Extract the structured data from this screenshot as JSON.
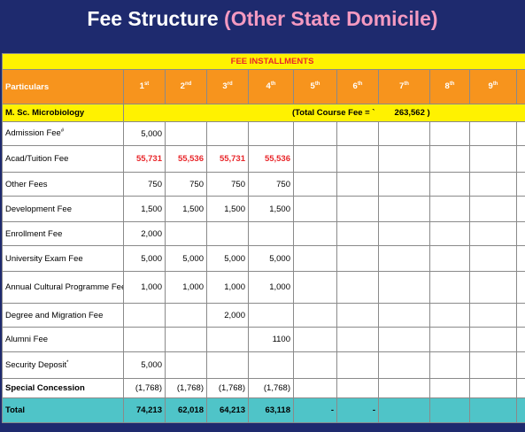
{
  "header": {
    "title": "Fee Structure",
    "subtitle": "(Other State Domicile)"
  },
  "table": {
    "banner": "FEE INSTALLMENTS",
    "columns": [
      {
        "text": "Particulars"
      },
      {
        "text": "1",
        "sup": "st"
      },
      {
        "text": "2",
        "sup": "nd"
      },
      {
        "text": "3",
        "sup": "rd"
      },
      {
        "text": "4",
        "sup": "th"
      },
      {
        "text": "5",
        "sup": "th"
      },
      {
        "text": "6",
        "sup": "th"
      },
      {
        "text": "7",
        "sup": "th"
      },
      {
        "text": "8",
        "sup": "th"
      },
      {
        "text": "9",
        "sup": "th"
      }
    ],
    "program": {
      "name": "M. Sc. Microbiology",
      "total_label": "(Total Course Fee = `",
      "total": "263,562 )"
    },
    "rows": [
      {
        "label": "Admission Fee",
        "sup": "#",
        "cells": [
          "5,000"
        ]
      },
      {
        "label": "Acad/Tuition  Fee",
        "color": "#e8262a",
        "cells": [
          "55,731",
          "55,536",
          "55,731",
          "55,536"
        ]
      },
      {
        "label": "Other Fees",
        "cells": [
          "750",
          "750",
          "750",
          "750"
        ]
      },
      {
        "label": "Development Fee",
        "cells": [
          "1,500",
          "1,500",
          "1,500",
          "1,500"
        ]
      },
      {
        "label": "Enrollment Fee",
        "cells": [
          "2,000"
        ]
      },
      {
        "label": "University Exam Fee",
        "cells": [
          "5,000",
          "5,000",
          "5,000",
          "5,000"
        ]
      },
      {
        "label": "Annual Cultural Programme Fee",
        "cells": [
          "1,000",
          "1,000",
          "1,000",
          "1,000"
        ]
      },
      {
        "label": "Degree and Migration Fee",
        "cells": [
          null,
          null,
          "2,000"
        ]
      },
      {
        "label": "Alumni Fee",
        "cells": [
          null,
          null,
          null,
          "1100"
        ]
      },
      {
        "label": "Security Deposit",
        "sup": "*",
        "cells": [
          "5,000"
        ]
      },
      {
        "label": "Special Concession",
        "bold": true,
        "cells": [
          "(1,768)",
          "(1,768)",
          "(1,768)",
          "(1,768)"
        ]
      }
    ],
    "total": {
      "label": "Total",
      "cells": [
        "74,213",
        "62,018",
        "64,213",
        "63,118",
        "-",
        "-"
      ]
    }
  }
}
